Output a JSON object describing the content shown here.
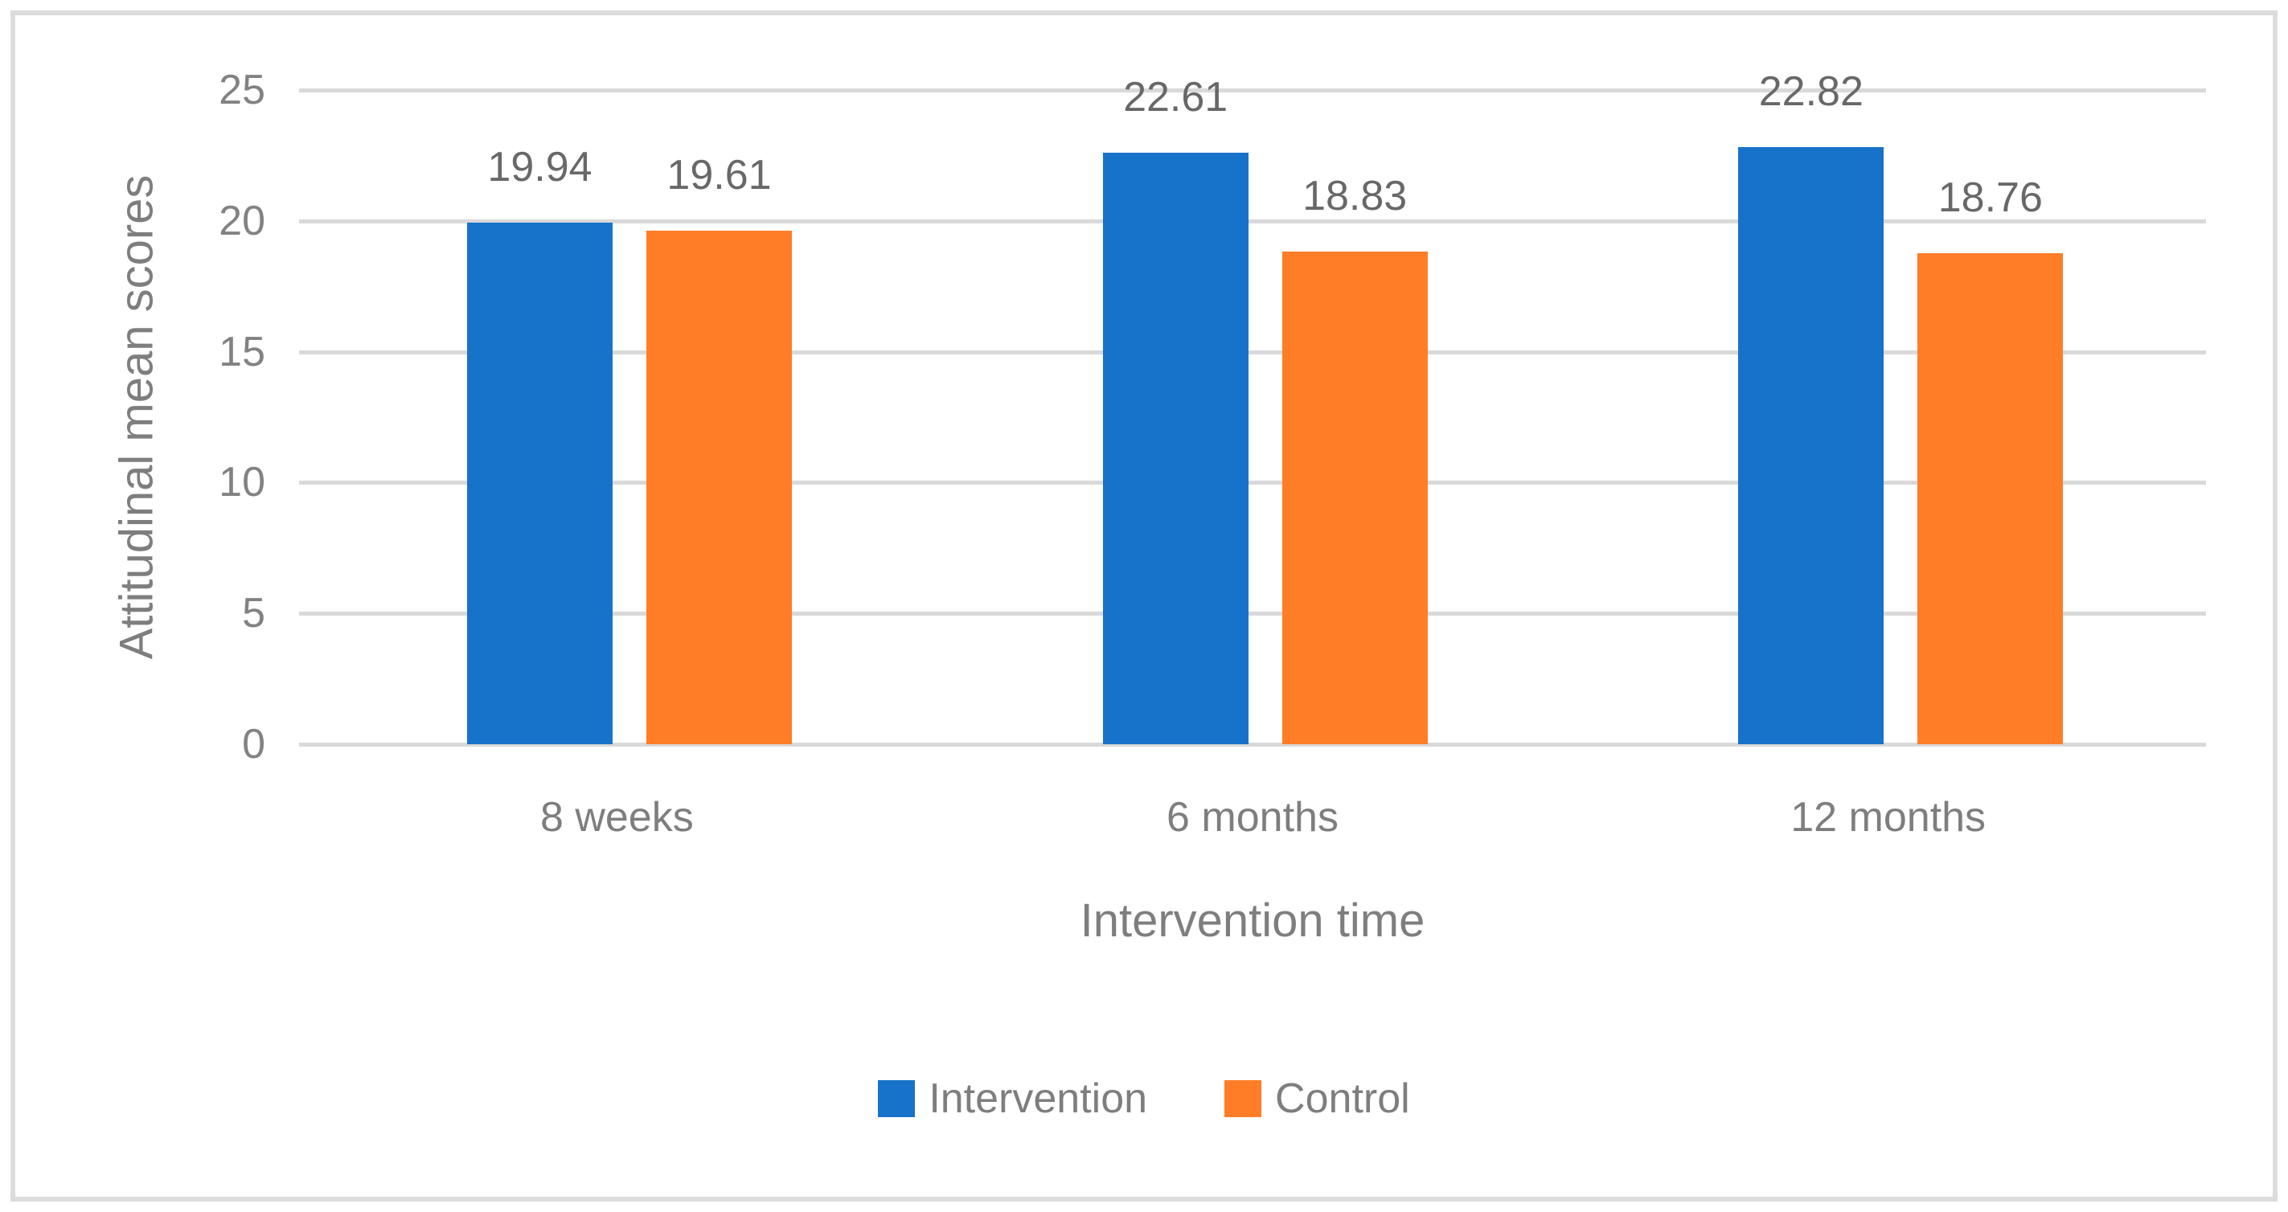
{
  "figure": {
    "background": "#FFFFFF",
    "border_color": "#DCDCDC"
  },
  "chart_data": {
    "type": "bar",
    "title": "",
    "xlabel": "Intervention time",
    "ylabel": "Attitudinal mean scores",
    "categories": [
      "8 weeks",
      "6 months",
      "12 months"
    ],
    "series": [
      {
        "name": "Intervention",
        "color": "#1772C9",
        "values": [
          19.94,
          22.61,
          22.82
        ]
      },
      {
        "name": "Control",
        "color": "#FF7D27",
        "values": [
          19.61,
          18.83,
          18.76
        ]
      }
    ],
    "data_labels": {
      "Intervention": [
        "19.94",
        "22.61",
        "22.82"
      ],
      "Control": [
        "19.61",
        "18.83",
        "18.76"
      ]
    },
    "ylim": [
      0,
      25
    ],
    "yticks": [
      0,
      5,
      10,
      15,
      20,
      25
    ],
    "grid": "horizontal",
    "gridline_color": "#D9D9D9",
    "text_color_axis": "#7E7E7E",
    "text_color_data_labels": "#686868",
    "legend_position": "bottom",
    "legend": [
      "Intervention",
      "Control"
    ]
  }
}
